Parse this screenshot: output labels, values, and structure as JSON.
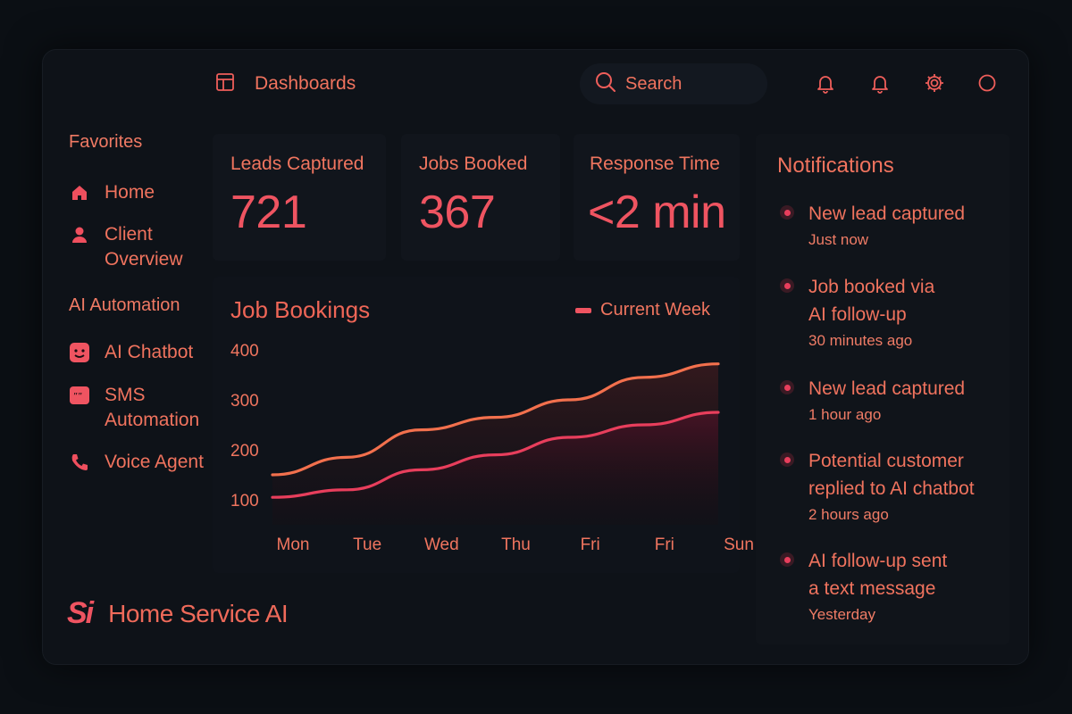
{
  "header": {
    "dashboards_label": "Dashboards",
    "search_label": "Search"
  },
  "sidebar": {
    "favorites_heading": "Favorites",
    "favorites": [
      {
        "label": "Home",
        "icon": "home-icon"
      },
      {
        "label": "Client\nOverview",
        "icon": "user-icon"
      }
    ],
    "automation_heading": "AI Automation",
    "automation": [
      {
        "label": "AI Chatbot",
        "icon": "chatbot-icon"
      },
      {
        "label": "SMS\nAutomation",
        "icon": "sms-icon"
      },
      {
        "label": "Voice Agent",
        "icon": "phone-icon"
      }
    ]
  },
  "stats": [
    {
      "title": "Leads Captured",
      "value": "721"
    },
    {
      "title": "Jobs Booked",
      "value": "367"
    },
    {
      "title": "Response Time",
      "value": "<2 min"
    }
  ],
  "chart_data": {
    "type": "area",
    "title": "Job Bookings",
    "categories": [
      "Mon",
      "Tue",
      "Wed",
      "Thu",
      "Fri",
      "Fri",
      "Sun"
    ],
    "yticks": [
      100,
      200,
      300,
      400
    ],
    "ylim": [
      50,
      420
    ],
    "legend": "top-right",
    "series": [
      {
        "name": "Current Week",
        "values": [
          150,
          185,
          240,
          265,
          300,
          345,
          372
        ],
        "color": "#f2704d"
      },
      {
        "name": "",
        "values": [
          105,
          120,
          160,
          190,
          225,
          250,
          275
        ],
        "color": "#e83e5c"
      }
    ]
  },
  "notifications": {
    "title": "Notifications",
    "items": [
      {
        "text": "New lead captured",
        "time": "Just now"
      },
      {
        "text": "Job booked via\nAI follow-up",
        "time": "30 minutes ago"
      },
      {
        "text": "New lead captured",
        "time": "1 hour ago"
      },
      {
        "text": "Potential customer\nreplied to AI chatbot",
        "time": "2 hours ago"
      },
      {
        "text": "AI follow-up sent\na text message",
        "time": "Yesterday"
      }
    ]
  },
  "brand": {
    "logo_text": "Si",
    "name": "Home Service AI"
  },
  "colors": {
    "accent": "#ef5461",
    "accent_orange": "#f0735e",
    "background": "#0b0f14"
  }
}
